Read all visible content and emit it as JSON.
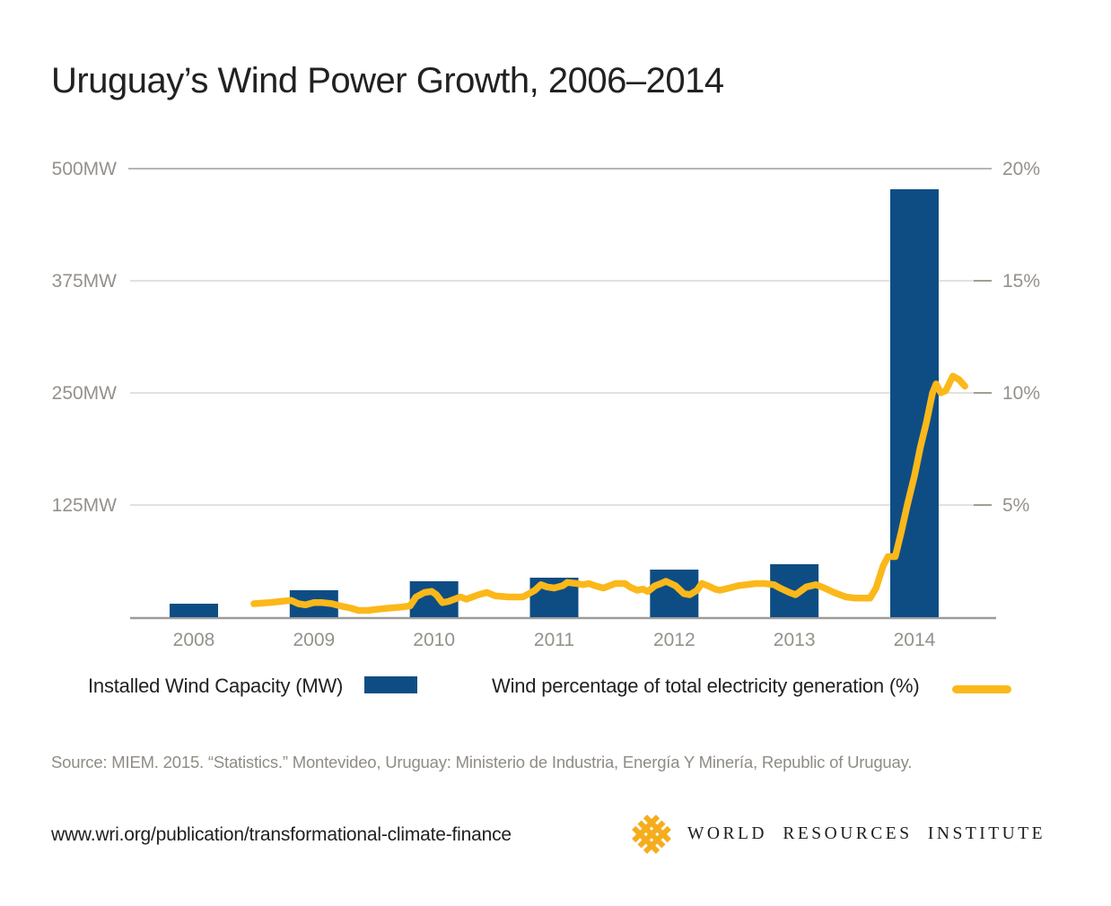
{
  "title": "Uruguay’s Wind Power Growth, 2006–2014",
  "legend": {
    "bar_label": "Installed Wind Capacity (MW)",
    "line_label": "Wind percentage of total electricity generation (%)"
  },
  "source": "Source: MIEM. 2015. “Statistics.” Montevideo, Uruguay: Ministerio de Industria, Energía Y Minería, Republic of Uruguay.",
  "footer": {
    "url": "www.wri.org/publication/transformational-climate-finance",
    "org": "WORLD RESOURCES INSTITUTE"
  },
  "colors": {
    "bar_blue": "#0e4d84",
    "line_yellow": "#fbb81a",
    "logo_yellow": "#f5ad1d",
    "axis_text_gray": "#95918a",
    "gridline_light": "#dcd9d4",
    "gridline_dark": "#a29e96",
    "baseline_gray": "#9c9c9c",
    "text_dark": "#232021"
  },
  "chart_data": {
    "type": "bar",
    "title": "Uruguay’s Wind Power Growth, 2006–2014",
    "grid": true,
    "legend_position": "bottom",
    "categories": [
      "2008",
      "2009",
      "2010",
      "2011",
      "2012",
      "2013",
      "2014"
    ],
    "left_axis": {
      "unit": "MW",
      "min": 0,
      "max": 500,
      "ticks": [
        {
          "label": "500MW",
          "value": 500
        },
        {
          "label": "375MW",
          "value": 375
        },
        {
          "label": "250MW",
          "value": 250
        },
        {
          "label": "125MW",
          "value": 125
        }
      ]
    },
    "right_axis": {
      "unit": "%",
      "min": 0,
      "max": 20,
      "ticks": [
        {
          "label": "20%",
          "value": 20
        },
        {
          "label": "15%",
          "value": 15
        },
        {
          "label": "10%",
          "value": 10
        },
        {
          "label": "5%",
          "value": 5
        }
      ]
    },
    "series": [
      {
        "name": "Installed Wind Capacity (MW)",
        "type": "bar",
        "axis": "left",
        "unit": "MW",
        "values": [
          15,
          30,
          40,
          44,
          53,
          59,
          477
        ]
      },
      {
        "name": "Wind percentage of total electricity generation (%)",
        "type": "line",
        "axis": "right",
        "unit": "%",
        "points": [
          [
            2008.5,
            0.6
          ],
          [
            2008.63,
            0.65
          ],
          [
            2008.72,
            0.7
          ],
          [
            2008.81,
            0.75
          ],
          [
            2008.87,
            0.6
          ],
          [
            2008.93,
            0.55
          ],
          [
            2009.0,
            0.65
          ],
          [
            2009.07,
            0.65
          ],
          [
            2009.15,
            0.6
          ],
          [
            2009.22,
            0.5
          ],
          [
            2009.31,
            0.4
          ],
          [
            2009.37,
            0.3
          ],
          [
            2009.45,
            0.3
          ],
          [
            2009.52,
            0.35
          ],
          [
            2009.62,
            0.4
          ],
          [
            2009.72,
            0.45
          ],
          [
            2009.8,
            0.5
          ],
          [
            2009.85,
            0.9
          ],
          [
            2009.92,
            1.1
          ],
          [
            2009.98,
            1.15
          ],
          [
            2010.02,
            1.0
          ],
          [
            2010.07,
            0.65
          ],
          [
            2010.12,
            0.7
          ],
          [
            2010.22,
            0.9
          ],
          [
            2010.27,
            0.8
          ],
          [
            2010.37,
            1.0
          ],
          [
            2010.44,
            1.1
          ],
          [
            2010.51,
            0.95
          ],
          [
            2010.62,
            0.9
          ],
          [
            2010.74,
            0.9
          ],
          [
            2010.84,
            1.2
          ],
          [
            2010.89,
            1.45
          ],
          [
            2010.94,
            1.35
          ],
          [
            2011.0,
            1.3
          ],
          [
            2011.07,
            1.4
          ],
          [
            2011.11,
            1.55
          ],
          [
            2011.19,
            1.5
          ],
          [
            2011.24,
            1.45
          ],
          [
            2011.29,
            1.5
          ],
          [
            2011.34,
            1.4
          ],
          [
            2011.41,
            1.3
          ],
          [
            2011.46,
            1.4
          ],
          [
            2011.51,
            1.5
          ],
          [
            2011.59,
            1.5
          ],
          [
            2011.63,
            1.35
          ],
          [
            2011.69,
            1.2
          ],
          [
            2011.74,
            1.25
          ],
          [
            2011.78,
            1.15
          ],
          [
            2011.84,
            1.4
          ],
          [
            2011.89,
            1.5
          ],
          [
            2011.93,
            1.6
          ],
          [
            2012.01,
            1.4
          ],
          [
            2012.08,
            1.05
          ],
          [
            2012.13,
            1.0
          ],
          [
            2012.19,
            1.2
          ],
          [
            2012.23,
            1.5
          ],
          [
            2012.28,
            1.4
          ],
          [
            2012.34,
            1.25
          ],
          [
            2012.38,
            1.2
          ],
          [
            2012.46,
            1.3
          ],
          [
            2012.53,
            1.4
          ],
          [
            2012.6,
            1.45
          ],
          [
            2012.68,
            1.5
          ],
          [
            2012.75,
            1.5
          ],
          [
            2012.83,
            1.45
          ],
          [
            2012.88,
            1.3
          ],
          [
            2012.96,
            1.1
          ],
          [
            2013.01,
            1.0
          ],
          [
            2013.1,
            1.35
          ],
          [
            2013.18,
            1.45
          ],
          [
            2013.25,
            1.3
          ],
          [
            2013.33,
            1.1
          ],
          [
            2013.43,
            0.9
          ],
          [
            2013.51,
            0.85
          ],
          [
            2013.63,
            0.85
          ],
          [
            2013.68,
            1.3
          ],
          [
            2013.74,
            2.3
          ],
          [
            2013.78,
            2.7
          ],
          [
            2013.84,
            2.7
          ],
          [
            2013.89,
            3.8
          ],
          [
            2013.94,
            5.0
          ],
          [
            2014.0,
            6.3
          ],
          [
            2014.05,
            7.6
          ],
          [
            2014.1,
            8.7
          ],
          [
            2014.15,
            10.0
          ],
          [
            2014.18,
            10.4
          ],
          [
            2014.22,
            10.0
          ],
          [
            2014.26,
            10.1
          ],
          [
            2014.32,
            10.75
          ],
          [
            2014.37,
            10.6
          ],
          [
            2014.42,
            10.3
          ]
        ]
      }
    ]
  }
}
